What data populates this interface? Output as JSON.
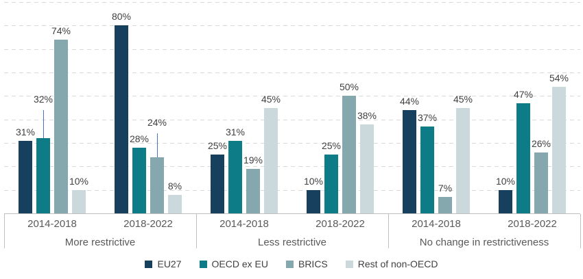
{
  "chart_data": {
    "type": "bar",
    "title": "",
    "value_suffix": "%",
    "ylim": [
      0,
      90
    ],
    "gridline_step": 10,
    "grid": "dashed-horizontal",
    "legend_position": "bottom-center",
    "groups": [
      "More restrictive",
      "Less restrictive",
      "No change in restrictiveness"
    ],
    "periods": [
      "2014-2018",
      "2018-2022"
    ],
    "series": [
      {
        "name": "EU27",
        "color": "#17405e",
        "values": [
          [
            31,
            80
          ],
          [
            25,
            10
          ],
          [
            44,
            10
          ]
        ]
      },
      {
        "name": "OECD ex EU",
        "color": "#0d7c86",
        "values": [
          [
            32,
            28
          ],
          [
            31,
            25
          ],
          [
            37,
            47
          ]
        ]
      },
      {
        "name": "BRICS",
        "color": "#85a7ae",
        "values": [
          [
            74,
            24
          ],
          [
            19,
            50
          ],
          [
            7,
            26
          ]
        ]
      },
      {
        "name": "Rest of non-OECD",
        "color": "#cbd8dc",
        "values": [
          [
            10,
            8
          ],
          [
            45,
            38
          ],
          [
            45,
            54
          ]
        ]
      }
    ],
    "callouts": [
      {
        "group": 0,
        "period": 0,
        "series": 1,
        "lift": 44,
        "line_color": "#4472c4"
      },
      {
        "group": 0,
        "period": 1,
        "series": 2,
        "lift": 38,
        "line_color": "#4472c4"
      }
    ]
  },
  "colors": {
    "gridline": "#d9d9d9",
    "axis_line": "#bfbfbf",
    "value_text": "#404040",
    "axis_text": "#595959",
    "leader_line": "#4472c4",
    "background": "#ffffff"
  }
}
